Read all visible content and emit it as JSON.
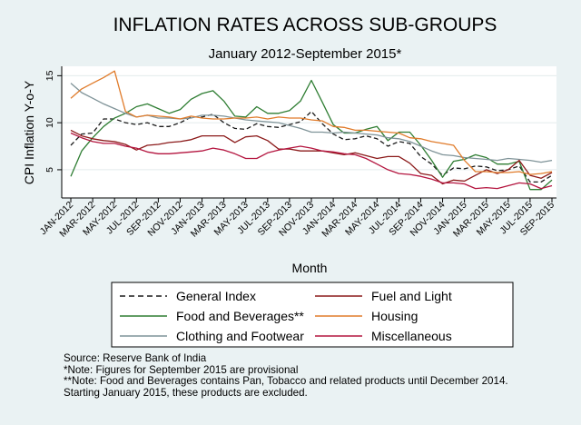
{
  "chart_data": {
    "type": "line",
    "title": "INFLATION RATES ACROSS SUB-GROUPS",
    "subtitle": "January 2012-September 2015*",
    "xlabel": "Month",
    "ylabel": "CPI Inflation Y-o-Y",
    "ylim": [
      2,
      16
    ],
    "yticks": [
      5,
      10,
      15
    ],
    "grid": "horizontal",
    "legend_position": "bottom",
    "x": [
      "JAN-2012",
      "FEB-2012",
      "MAR-2012",
      "APR-2012",
      "MAY-2012",
      "JUN-2012",
      "JUL-2012",
      "AUG-2012",
      "SEP-2012",
      "OCT-2012",
      "NOV-2012",
      "DEC-2012",
      "JAN-2013",
      "FEB-2013",
      "MAR-2013",
      "APR-2013",
      "MAY-2013",
      "JUN-2013",
      "JUL-2013",
      "AUG-2013",
      "SEP-2013",
      "OCT-2013",
      "NOV-2013",
      "DEC-2013",
      "JAN-2014",
      "FEB-2014",
      "MAR-2014",
      "APR-2014",
      "MAY-2014",
      "JUN-2014",
      "JUL-2014",
      "AUG-2014",
      "SEP-2014",
      "OCT-2014",
      "NOV-2014",
      "DEC-2014",
      "JAN-2015",
      "FEB-2015",
      "MAR-2015",
      "APR-2015",
      "MAY-2015",
      "JUN-2015",
      "JUL-2015",
      "AUG-2015",
      "SEP-2015"
    ],
    "xtick_labels": [
      "JAN-2012",
      "MAR-2012",
      "MAY-2012",
      "JUL-2012",
      "SEP-2012",
      "NOV-2012",
      "JAN-2013",
      "MAR-2013",
      "MAY-2013",
      "JUL-2013",
      "SEP-2013",
      "NOV-2013",
      "JAN-2014",
      "MAR-2014",
      "MAY-2014",
      "JUL-2014",
      "SEP-2014",
      "NOV-2014",
      "JAN-2015",
      "MAR-2015",
      "MAY-2015",
      "JUL-2015",
      "SEP-2015"
    ],
    "series": [
      {
        "name": "General Index",
        "color": "#1a1a1a",
        "dash": "dashed",
        "values": [
          7.6,
          8.8,
          8.9,
          10.4,
          10.4,
          10.0,
          9.8,
          10.0,
          9.6,
          9.6,
          10.0,
          10.6,
          10.6,
          10.9,
          10.0,
          9.4,
          9.3,
          9.9,
          9.6,
          9.5,
          9.8,
          10.1,
          11.2,
          9.9,
          8.8,
          8.2,
          8.3,
          8.6,
          8.3,
          7.5,
          8.0,
          7.8,
          6.4,
          5.6,
          4.4,
          5.2,
          5.1,
          5.4,
          5.3,
          4.9,
          5.0,
          5.4,
          3.7,
          3.7,
          4.4
        ]
      },
      {
        "name": "Food and Beverages**",
        "color": "#2e7d32",
        "dash": "solid",
        "values": [
          4.3,
          7.0,
          8.4,
          9.6,
          10.5,
          11.0,
          11.7,
          12.0,
          11.5,
          11.0,
          11.4,
          12.5,
          13.1,
          13.4,
          12.3,
          10.7,
          10.6,
          11.7,
          11.0,
          11.0,
          11.3,
          12.3,
          14.5,
          12.2,
          9.8,
          8.9,
          8.9,
          9.3,
          9.6,
          8.1,
          9.0,
          9.0,
          7.6,
          6.0,
          4.2,
          5.9,
          6.1,
          6.6,
          6.3,
          5.6,
          5.6,
          5.9,
          2.9,
          2.9,
          3.9
        ]
      },
      {
        "name": "Clothing and Footwear",
        "color": "#7f9398",
        "dash": "solid",
        "values": [
          14.2,
          13.2,
          12.6,
          12.0,
          11.5,
          11.0,
          10.6,
          10.8,
          10.5,
          10.5,
          10.4,
          10.5,
          10.8,
          10.8,
          10.7,
          10.5,
          10.3,
          10.2,
          10.1,
          10.0,
          9.7,
          9.4,
          9.0,
          9.0,
          8.9,
          9.0,
          8.9,
          8.8,
          8.7,
          8.4,
          8.3,
          8.0,
          7.5,
          7.0,
          6.6,
          6.5,
          6.3,
          6.2,
          6.1,
          6.0,
          6.2,
          6.1,
          6.0,
          5.8,
          6.0
        ]
      },
      {
        "name": "Fuel and Light",
        "color": "#8b1a1a",
        "dash": "solid",
        "values": [
          9.2,
          8.6,
          8.3,
          8.1,
          8.0,
          7.7,
          7.1,
          7.6,
          7.7,
          7.9,
          8.0,
          8.2,
          8.6,
          8.6,
          8.6,
          7.9,
          8.5,
          8.6,
          8.1,
          7.2,
          7.2,
          7.0,
          7.0,
          7.0,
          6.8,
          6.6,
          6.8,
          6.5,
          6.2,
          6.4,
          6.4,
          5.7,
          4.6,
          4.4,
          3.5,
          3.9,
          3.8,
          4.4,
          5.0,
          4.6,
          5.0,
          6.0,
          4.4,
          4.1,
          4.7
        ]
      },
      {
        "name": "Housing",
        "color": "#e07b2a",
        "dash": "solid",
        "values": [
          12.6,
          13.6,
          14.2,
          14.8,
          15.5,
          11.2,
          10.6,
          10.8,
          10.7,
          10.6,
          10.4,
          10.7,
          10.5,
          10.4,
          10.4,
          10.5,
          10.5,
          10.6,
          10.4,
          10.6,
          10.5,
          10.5,
          10.3,
          10.2,
          9.6,
          9.5,
          9.2,
          9.2,
          9.1,
          9.0,
          8.9,
          8.4,
          8.3,
          8.0,
          7.8,
          7.6,
          6.0,
          4.8,
          4.8,
          4.7,
          4.7,
          4.8,
          4.5,
          4.6,
          4.8
        ]
      },
      {
        "name": "Miscellaneous",
        "color": "#b4153f",
        "dash": "solid",
        "values": [
          8.9,
          8.4,
          8.0,
          7.8,
          7.8,
          7.5,
          7.3,
          6.9,
          6.7,
          6.7,
          6.8,
          6.9,
          7.0,
          7.3,
          7.1,
          6.7,
          6.2,
          6.2,
          6.8,
          7.1,
          7.3,
          7.5,
          7.3,
          7.0,
          6.9,
          6.7,
          6.6,
          6.2,
          5.6,
          5.0,
          4.6,
          4.5,
          4.3,
          4.0,
          3.6,
          3.6,
          3.5,
          3.0,
          3.1,
          3.0,
          3.3,
          3.6,
          3.5,
          3.0,
          3.3
        ]
      }
    ],
    "legend": [
      {
        "name": "General Index",
        "col": 0
      },
      {
        "name": "Fuel and Light",
        "col": 1
      },
      {
        "name": "Food and Beverages**",
        "col": 0
      },
      {
        "name": "Housing",
        "col": 1
      },
      {
        "name": "Clothing and Footwear",
        "col": 0
      },
      {
        "name": "Miscellaneous",
        "col": 1
      }
    ]
  },
  "notes": [
    "Source: Reserve Bank of India",
    "*Note: Figures for September 2015 are provisional",
    "**Note: Food and Beverages contains Pan, Tobacco and related products until December 2014.",
    "Starting January 2015, these products are excluded."
  ]
}
